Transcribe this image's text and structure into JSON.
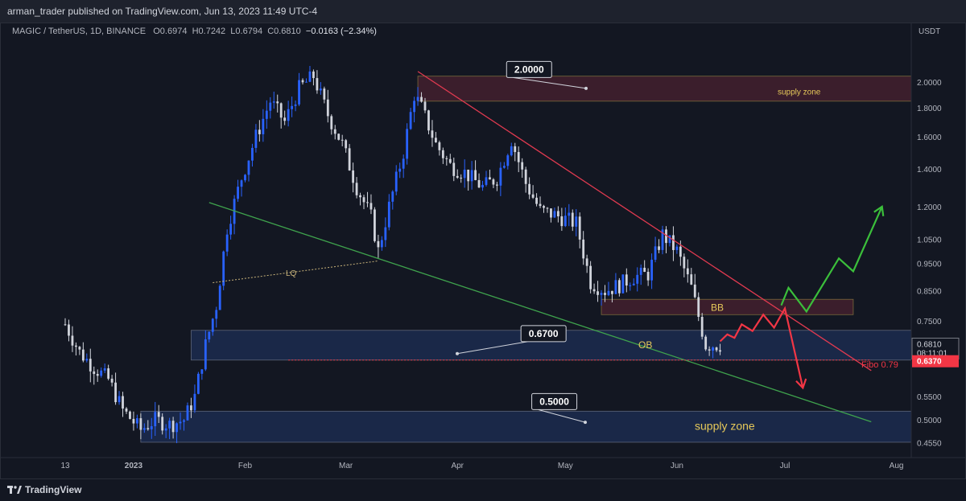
{
  "header": {
    "published": "arman_trader published on TradingView.com, Jun 13, 2023 11:49 UTC-4"
  },
  "legend": {
    "symbol": "MAGIC / TetherUS, 1D, BINANCE",
    "open": "O0.6974",
    "high": "H0.7242",
    "low": "L0.6794",
    "close": "C0.6810",
    "change": "−0.0163 (−2.34%)"
  },
  "footer": {
    "brand": "TradingView"
  },
  "colors": {
    "background": "#131722",
    "bull": "#2962ff",
    "bear": "#d1d4dc",
    "resistance": "#e03a50",
    "support": "#3fa34d",
    "projection_up": "#3bbf3b",
    "projection_down": "#f23645",
    "zone_blue": "#1e2f55",
    "zone_red": "#4a2230"
  },
  "chart_data": {
    "type": "candlestick",
    "scale": "log",
    "currency": "USDT",
    "y_ticks": [
      "2.0000",
      "1.8000",
      "1.6000",
      "1.4000",
      "1.2000",
      "1.0500",
      "0.9500",
      "0.8500",
      "0.7500",
      "0.6810",
      "0.6370",
      "0.5500",
      "0.5000",
      "0.4550"
    ],
    "y_tick_values": [
      2.0,
      1.8,
      1.6,
      1.4,
      1.2,
      1.05,
      0.95,
      0.85,
      0.75,
      0.681,
      0.637,
      0.55,
      0.5,
      0.455
    ],
    "x_ticks": [
      "13",
      "2023",
      "Feb",
      "Mar",
      "Apr",
      "May",
      "Jun",
      "Jul",
      "Aug"
    ],
    "x_tick_dates": [
      "2022-12-13",
      "2023-01-01",
      "2023-02-01",
      "2023-03-01",
      "2023-04-01",
      "2023-05-01",
      "2023-06-01",
      "2023-07-01",
      "2023-08-01"
    ],
    "last_price": {
      "value": "0.6810",
      "countdown": "08:11:01"
    },
    "marked_price": "0.6370",
    "close_series": [
      [
        "2022-12-13",
        0.74
      ],
      [
        "2022-12-17",
        0.66
      ],
      [
        "2022-12-21",
        0.62
      ],
      [
        "2022-12-25",
        0.59
      ],
      [
        "2022-12-29",
        0.52
      ],
      [
        "2023-01-03",
        0.48
      ],
      [
        "2023-01-07",
        0.5
      ],
      [
        "2023-01-11",
        0.49
      ],
      [
        "2023-01-15",
        0.5
      ],
      [
        "2023-01-18",
        0.55
      ],
      [
        "2023-01-21",
        0.68
      ],
      [
        "2023-01-24",
        0.8
      ],
      [
        "2023-01-27",
        1.1
      ],
      [
        "2023-01-31",
        1.35
      ],
      [
        "2023-02-04",
        1.6
      ],
      [
        "2023-02-08",
        1.85
      ],
      [
        "2023-02-12",
        1.7
      ],
      [
        "2023-02-16",
        1.95
      ],
      [
        "2023-02-20",
        2.05
      ],
      [
        "2023-02-24",
        1.75
      ],
      [
        "2023-02-28",
        1.55
      ],
      [
        "2023-03-04",
        1.3
      ],
      [
        "2023-03-08",
        1.15
      ],
      [
        "2023-03-10",
        1.0
      ],
      [
        "2023-03-13",
        1.2
      ],
      [
        "2023-03-17",
        1.5
      ],
      [
        "2023-03-20",
        1.9
      ],
      [
        "2023-03-22",
        1.8
      ],
      [
        "2023-03-26",
        1.55
      ],
      [
        "2023-03-30",
        1.42
      ],
      [
        "2023-04-03",
        1.38
      ],
      [
        "2023-04-08",
        1.3
      ],
      [
        "2023-04-12",
        1.35
      ],
      [
        "2023-04-16",
        1.58
      ],
      [
        "2023-04-20",
        1.32
      ],
      [
        "2023-04-24",
        1.18
      ],
      [
        "2023-04-28",
        1.16
      ],
      [
        "2023-05-04",
        1.12
      ],
      [
        "2023-05-08",
        0.88
      ],
      [
        "2023-05-12",
        0.85
      ],
      [
        "2023-05-16",
        0.87
      ],
      [
        "2023-05-20",
        0.9
      ],
      [
        "2023-05-24",
        0.91
      ],
      [
        "2023-05-28",
        1.07
      ],
      [
        "2023-06-01",
        1.0
      ],
      [
        "2023-06-05",
        0.86
      ],
      [
        "2023-06-09",
        0.68
      ],
      [
        "2023-06-13",
        0.681
      ]
    ],
    "annotations": {
      "price_callouts": [
        "2.0000",
        "0.6700",
        "0.5000"
      ],
      "zone_labels": {
        "top_supply": "supply zone",
        "bottom_supply": "supply zone",
        "order_block": "OB",
        "breaker_block": "BB"
      },
      "line_labels": {
        "liquidity": "LQ",
        "fibo": "Fibo 0.79"
      }
    },
    "zones": [
      {
        "label": "supply zone",
        "from": "2023-03-21",
        "to": "2023-08-20",
        "low": 1.85,
        "high": 2.05,
        "color": "#4a2230"
      },
      {
        "label": "BB",
        "from": "2023-05-11",
        "to": "2023-07-20",
        "low": 0.77,
        "high": 0.82,
        "color": "#4a2230"
      },
      {
        "label": "OB",
        "from": "2023-01-17",
        "to": "2023-08-20",
        "low": 0.639,
        "high": 0.722,
        "color": "#1e2f55"
      },
      {
        "label": "supply zone",
        "from": "2023-01-03",
        "to": "2023-08-20",
        "low": 0.456,
        "high": 0.518,
        "color": "#1e2f55"
      }
    ],
    "lines": [
      {
        "name": "resistance",
        "from": [
          "2023-03-21",
          2.09
        ],
        "to": [
          "2023-07-25",
          0.612
        ],
        "color": "#e03a50"
      },
      {
        "name": "support",
        "from": [
          "2023-01-22",
          1.22
        ],
        "to": [
          "2023-07-25",
          0.496
        ],
        "color": "#3fa34d"
      },
      {
        "name": "liquidity",
        "from": [
          "2023-01-23",
          0.878
        ],
        "to": [
          "2023-03-10",
          0.96
        ],
        "color": "#c8b37a",
        "dash": true
      },
      {
        "name": "fibo",
        "from": [
          "2023-02-13",
          0.639
        ],
        "to": [
          "2023-07-25",
          0.639
        ],
        "color": "#f23645",
        "dash": true
      }
    ],
    "projections": [
      {
        "direction": "down",
        "points": [
          [
            "2023-06-13",
            0.69
          ],
          [
            "2023-06-15",
            0.71
          ],
          [
            "2023-06-17",
            0.7
          ],
          [
            "2023-06-19",
            0.74
          ],
          [
            "2023-06-22",
            0.72
          ],
          [
            "2023-06-25",
            0.77
          ],
          [
            "2023-06-28",
            0.73
          ],
          [
            "2023-07-01",
            0.79
          ],
          [
            "2023-07-06",
            0.57
          ]
        ],
        "color": "#f23645"
      },
      {
        "direction": "up",
        "points": [
          [
            "2023-06-30",
            0.8
          ],
          [
            "2023-07-02",
            0.86
          ],
          [
            "2023-07-07",
            0.78
          ],
          [
            "2023-07-16",
            0.97
          ],
          [
            "2023-07-20",
            0.92
          ],
          [
            "2023-07-28",
            1.2
          ]
        ],
        "color": "#3bbf3b"
      }
    ]
  }
}
